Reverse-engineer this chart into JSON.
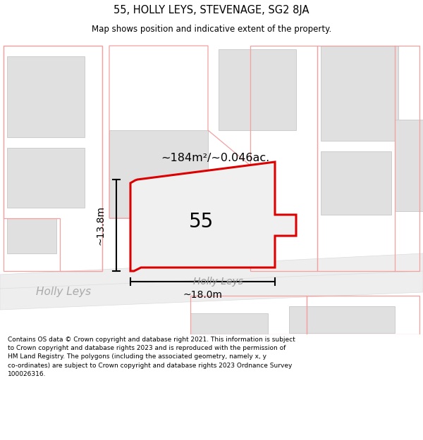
{
  "title": "55, HOLLY LEYS, STEVENAGE, SG2 8JA",
  "subtitle": "Map shows position and indicative extent of the property.",
  "footer": "Contains OS data © Crown copyright and database right 2021. This information is subject\nto Crown copyright and database rights 2023 and is reproduced with the permission of\nHM Land Registry. The polygons (including the associated geometry, namely x, y\nco-ordinates) are subject to Crown copyright and database rights 2023 Ordnance Survey\n100026316.",
  "area_text": "~184m²/~0.046ac.",
  "number_text": "55",
  "width_label": "~18.0m",
  "height_label": "~13.8m",
  "street_label_left": "Holly Leys",
  "street_label_center": "Holly Leys",
  "bg_color": "#ffffff",
  "pink_color": "#f5a0a0",
  "red_color": "#dd0000",
  "gray_building": "#e0e0e0",
  "gray_building_edge": "#cccccc",
  "road_fill": "#eeeeee",
  "road_edge": "#dddddd",
  "dim_color": "#000000"
}
